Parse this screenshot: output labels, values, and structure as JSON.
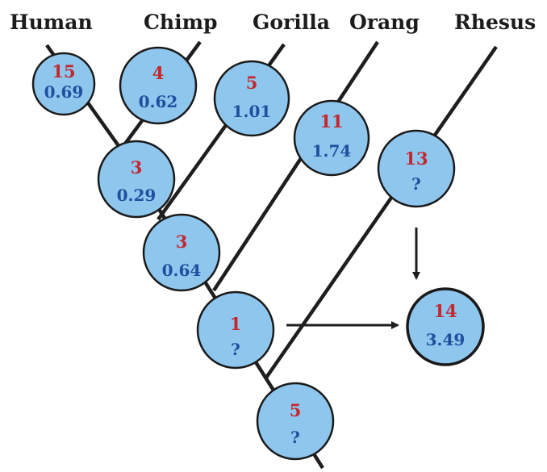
{
  "taxa": {
    "human": "Human",
    "chimp": "Chimp",
    "gorilla": "Gorilla",
    "orang": "Orang",
    "rhesus": "Rhesus"
  },
  "nodes": {
    "human": {
      "top": "15",
      "bottom": "0.69"
    },
    "chimp": {
      "top": "4",
      "bottom": "0.62"
    },
    "gorilla": {
      "top": "5",
      "bottom": "1.01"
    },
    "orang": {
      "top": "11",
      "bottom": "1.74"
    },
    "rhesus": {
      "top": "13",
      "bottom": "?"
    },
    "human_chimp": {
      "top": "3",
      "bottom": "0.29"
    },
    "human_chimp_gorilla": {
      "top": "3",
      "bottom": "0.64"
    },
    "great_apes": {
      "top": "1",
      "bottom": "?"
    },
    "root": {
      "top": "5",
      "bottom": "?"
    },
    "total": {
      "top": "14",
      "bottom": "3.49"
    }
  },
  "colors": {
    "node_fill": "#8ec6ee",
    "top_number": "#c4282d",
    "bottom_number": "#1f4f9e",
    "lines": "#1e1e1e"
  }
}
